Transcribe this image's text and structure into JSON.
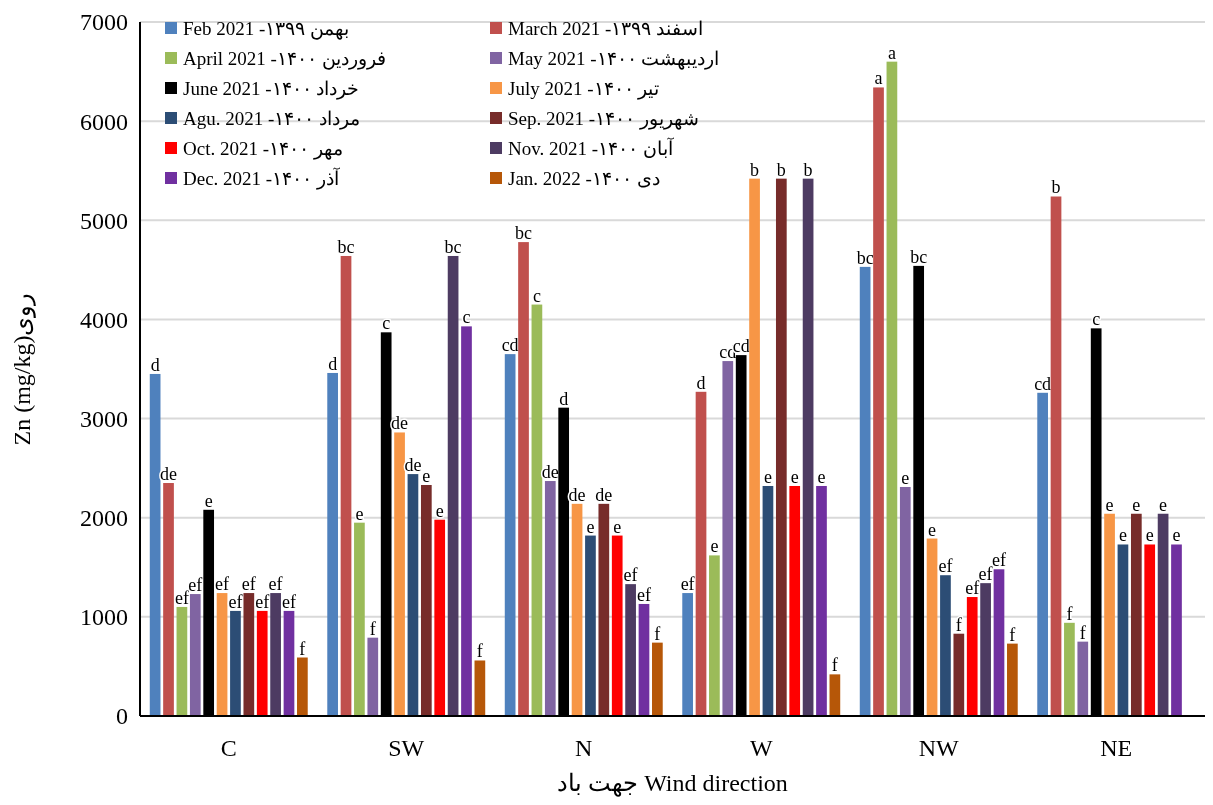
{
  "chart_data": {
    "type": "bar",
    "xlabel": "جهت باد Wind direction",
    "ylabel": "Zn (mg/kg)روی",
    "categories": [
      "C",
      "SW",
      "N",
      "W",
      "NW",
      "NE"
    ],
    "ylim": [
      0,
      7000
    ],
    "yticks": [
      0,
      1000,
      2000,
      3000,
      4000,
      5000,
      6000,
      7000
    ],
    "grid": "y",
    "legend": "top left",
    "series": [
      {
        "name": "Feb 2021 -۱۳۹۹ بهمن",
        "color": "#4f81bd",
        "values": [
          3450,
          3460,
          3650,
          1240,
          4530,
          3260
        ],
        "value_labels": [
          "d",
          "d",
          "cd",
          "ef",
          "bc",
          "cd"
        ]
      },
      {
        "name": "March 2021 -۱۳۹۹ اسفند",
        "color": "#c0504d",
        "values": [
          2350,
          4640,
          4780,
          3270,
          6340,
          5240
        ],
        "value_labels": [
          "de",
          "bc",
          "bc",
          "d",
          "a",
          "b"
        ]
      },
      {
        "name": "April 2021 -۱۴۰۰ فروردین",
        "color": "#9bbb59",
        "values": [
          1100,
          1950,
          4150,
          1620,
          6600,
          940
        ],
        "value_labels": [
          "ef",
          "e",
          "c",
          "e",
          "a",
          "f"
        ]
      },
      {
        "name": "May 2021 -۱۴۰۰ اردیبهشت",
        "color": "#8064a2",
        "values": [
          1230,
          790,
          2370,
          3580,
          2310,
          750
        ],
        "value_labels": [
          "ef",
          "f",
          "de",
          "cd",
          "e",
          "f"
        ]
      },
      {
        "name": "June 2021 -۱۴۰۰ خرداد",
        "color": "#000000",
        "values": [
          2080,
          3870,
          3110,
          3640,
          4540,
          3910
        ],
        "value_labels": [
          "e",
          "c",
          "d",
          "cd",
          "bc",
          "c"
        ]
      },
      {
        "name": "July 2021 -۱۴۰۰ تیر",
        "color": "#f79646",
        "values": [
          1240,
          2860,
          2140,
          5420,
          1790,
          2040
        ],
        "value_labels": [
          "ef",
          "de",
          "de",
          "b",
          "e",
          "e"
        ]
      },
      {
        "name": "Agu. 2021 -۱۴۰۰ مرداد",
        "color": "#2c4d75",
        "values": [
          1060,
          2440,
          1820,
          2320,
          1420,
          1730
        ],
        "value_labels": [
          "ef",
          "de",
          "e",
          "e",
          "ef",
          "e"
        ]
      },
      {
        "name": "Sep. 2021 -۱۴۰۰ شهریور",
        "color": "#772c2a",
        "values": [
          1240,
          2330,
          2140,
          5420,
          830,
          2040
        ],
        "value_labels": [
          "ef",
          "e",
          "de",
          "b",
          "f",
          "e"
        ]
      },
      {
        "name": "Oct. 2021 -۱۴۰۰ مهر",
        "color": "#ff0000",
        "values": [
          1060,
          1980,
          1820,
          2320,
          1200,
          1730
        ],
        "value_labels": [
          "ef",
          "e",
          "e",
          "e",
          "ef",
          "e"
        ]
      },
      {
        "name": "Nov. 2021 -۱۴۰۰ آبان",
        "color": "#4d3b62",
        "values": [
          1240,
          4640,
          1330,
          5420,
          1340,
          2040
        ],
        "value_labels": [
          "ef",
          "bc",
          "ef",
          "b",
          "ef",
          "e"
        ]
      },
      {
        "name": "Dec. 2021 -۱۴۰۰ آذر",
        "color": "#7030a0",
        "values": [
          1060,
          3930,
          1130,
          2320,
          1480,
          1730
        ],
        "value_labels": [
          "ef",
          "c",
          "ef",
          "e",
          "ef",
          "e"
        ]
      },
      {
        "name": "Jan. 2022 -۱۴۰۰ دی",
        "color": "#b65708",
        "values": [
          590,
          560,
          740,
          420,
          730,
          null
        ],
        "value_labels": [
          "f",
          "f",
          "f",
          "f",
          "f",
          null
        ]
      }
    ]
  }
}
